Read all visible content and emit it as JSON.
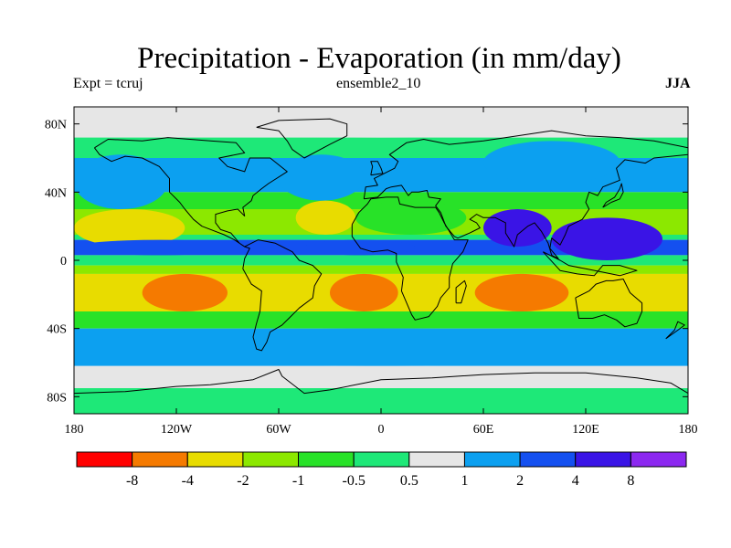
{
  "chart_data": {
    "type": "heatmap",
    "title": "Precipitation - Evaporation (in mm/day)",
    "experiment": "Expt = tcruj",
    "run": "ensemble2_10",
    "season": "JJA",
    "variable": "Precipitation - Evaporation",
    "units": "mm/day",
    "xlim": [
      -180,
      180
    ],
    "ylim": [
      -90,
      90
    ],
    "x_ticks": [
      {
        "value": -180,
        "label": "180"
      },
      {
        "value": -120,
        "label": "120W"
      },
      {
        "value": -60,
        "label": "60W"
      },
      {
        "value": 0,
        "label": "0"
      },
      {
        "value": 60,
        "label": "60E"
      },
      {
        "value": 120,
        "label": "120E"
      },
      {
        "value": 180,
        "label": "180"
      }
    ],
    "y_ticks": [
      {
        "value": 80,
        "label": "80N"
      },
      {
        "value": 40,
        "label": "40N"
      },
      {
        "value": 0,
        "label": "0"
      },
      {
        "value": -40,
        "label": "40S"
      },
      {
        "value": -80,
        "label": "80S"
      }
    ],
    "colorbar": {
      "levels": [
        "-8",
        "-4",
        "-2",
        "-1",
        "-0.5",
        "0.5",
        "1",
        "2",
        "4",
        "8"
      ],
      "colors": [
        "#ff0000",
        "#f57a00",
        "#e8dc00",
        "#8ce800",
        "#28e228",
        "#1ee878",
        "#e6e6e6",
        "#0ca0f0",
        "#1450f0",
        "#3a14e6",
        "#8c28f0"
      ]
    },
    "regions": [
      {
        "name": "arctic-ocean",
        "bin": 6,
        "lon": [
          -180,
          180
        ],
        "lat": [
          72,
          90
        ]
      },
      {
        "name": "north-pacific-storm-track",
        "bin": 7,
        "lon": [
          -180,
          -125
        ],
        "lat": [
          30,
          62
        ]
      },
      {
        "name": "north-atlantic-storm-track",
        "bin": 7,
        "lon": [
          -60,
          -10
        ],
        "lat": [
          35,
          62
        ]
      },
      {
        "name": "siberia",
        "bin": 7,
        "lon": [
          60,
          140
        ],
        "lat": [
          45,
          70
        ]
      },
      {
        "name": "north-pacific-subtropics",
        "bin": 2,
        "lon": [
          -180,
          -115
        ],
        "lat": [
          8,
          30
        ]
      },
      {
        "name": "north-atlantic-subtropics",
        "bin": 2,
        "lon": [
          -50,
          -15
        ],
        "lat": [
          15,
          35
        ]
      },
      {
        "name": "sahara-arabia",
        "bin": 4,
        "lon": [
          -15,
          50
        ],
        "lat": [
          15,
          35
        ]
      },
      {
        "name": "pacific-itcz",
        "bin": 8,
        "lon": [
          -180,
          -80
        ],
        "lat": [
          3,
          12
        ]
      },
      {
        "name": "atlantic-itcz",
        "bin": 8,
        "lon": [
          -45,
          20
        ],
        "lat": [
          3,
          12
        ]
      },
      {
        "name": "indian-monsoon",
        "bin": 9,
        "lon": [
          60,
          100
        ],
        "lat": [
          8,
          30
        ]
      },
      {
        "name": "west-pacific-warm-pool",
        "bin": 9,
        "lon": [
          100,
          165
        ],
        "lat": [
          0,
          25
        ]
      },
      {
        "name": "south-pacific-subtropics",
        "bin": 1,
        "lon": [
          -140,
          -90
        ],
        "lat": [
          -30,
          -8
        ]
      },
      {
        "name": "south-atlantic-subtropics",
        "bin": 1,
        "lon": [
          -30,
          10
        ],
        "lat": [
          -30,
          -8
        ]
      },
      {
        "name": "south-indian-subtropics",
        "bin": 1,
        "lon": [
          55,
          110
        ],
        "lat": [
          -30,
          -8
        ]
      },
      {
        "name": "southern-ocean-storm-track",
        "bin": 7,
        "lon": [
          -180,
          180
        ],
        "lat": [
          -62,
          -40
        ]
      },
      {
        "name": "antarctic-margin",
        "bin": 6,
        "lon": [
          -180,
          180
        ],
        "lat": [
          -75,
          -62
        ]
      },
      {
        "name": "antarctica",
        "bin": 5,
        "lon": [
          -180,
          180
        ],
        "lat": [
          -90,
          -75
        ]
      }
    ]
  }
}
